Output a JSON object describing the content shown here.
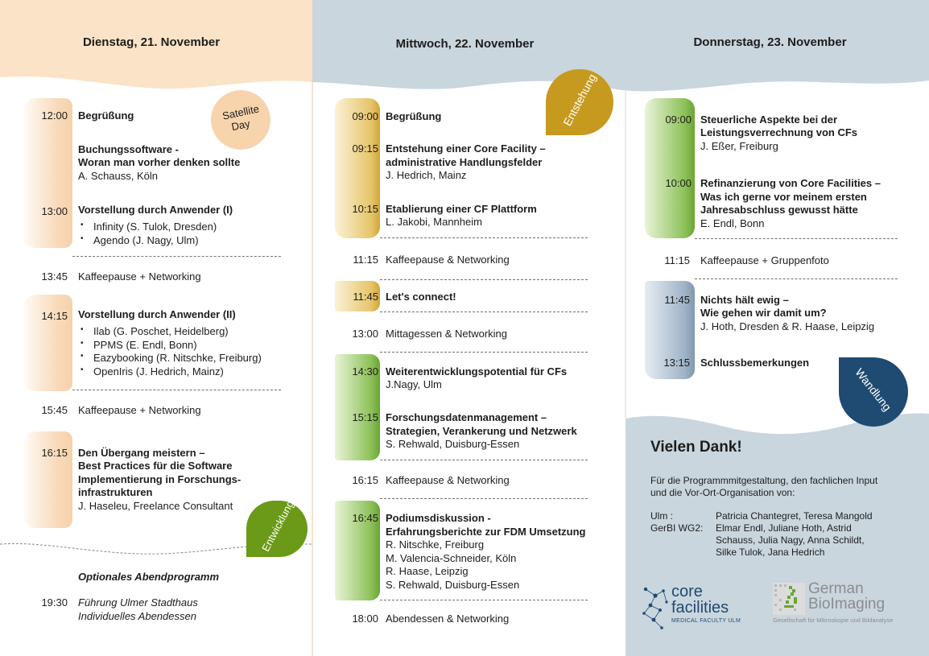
{
  "colors": {
    "peach": "#fbe3c8",
    "greyblue": "#cad6de",
    "gold": "#c69a1f",
    "green": "#6a9a17",
    "navy": "#1f4a72"
  },
  "day1": {
    "title": "Dienstag, 21. November",
    "badge": "Satellite Day",
    "badge_lines": [
      "Satellite",
      "Day"
    ],
    "tag": "Entwicklung",
    "e1_time": "12:00",
    "e1_title": "Begrüßung",
    "e2_title1": "Buchungssoftware -",
    "e2_title2": "Woran man vorher denken sollte",
    "e2_sub": "A. Schauss, Köln",
    "e3_time": "13:00",
    "e3_title": "Vorstellung durch Anwender (I)",
    "e3_items": [
      "Infinity (S. Tulok, Dresden)",
      "Agendo (J. Nagy, Ulm)"
    ],
    "e4_time": "13:45",
    "e4_text": "Kaffeepause + Networking",
    "e5_time": "14:15",
    "e5_title": "Vorstellung durch Anwender (II)",
    "e5_items": [
      "Ilab (G. Poschet, Heidelberg)",
      "PPMS (E. Endl, Bonn)",
      "Eazybooking (R. Nitschke, Freiburg)",
      "OpenIris (J. Hedrich, Mainz)"
    ],
    "e6_time": "15:45",
    "e6_text": "Kaffeepause + Networking",
    "e7_time": "16:15",
    "e7_lines": [
      "Den Übergang meistern –",
      "Best Practices für die Software",
      "Implementierung in Forschungs-",
      "infrastrukturen"
    ],
    "e7_sub": "J. Haseleu, Freelance Consultant",
    "evening_title": "Optionales Abendprogramm",
    "evening_time": "19:30",
    "evening_lines": [
      "Führung Ulmer Stadthaus",
      "Individuelles Abendessen"
    ]
  },
  "day2": {
    "title": "Mittwoch, 22. November",
    "tag": "Entstehung",
    "e1_time": "09:00",
    "e1_title": "Begrüßung",
    "e2_time": "09:15",
    "e2_title1": "Entstehung einer Core Facility –",
    "e2_title2": "administrative Handlungsfelder",
    "e2_sub": "J. Hedrich, Mainz",
    "e3_time": "10:15",
    "e3_title": "Etablierung einer CF Plattform",
    "e3_sub": "L. Jakobi, Mannheim",
    "e4_time": "11:15",
    "e4_text": "Kaffeepause & Networking",
    "e5_time": "11:45",
    "e5_title": "Let's connect!",
    "e6_time": "13:00",
    "e6_text": "Mittagessen & Networking",
    "e7_time": "14:30",
    "e7_title": "Weiterentwicklungspotential für CFs",
    "e7_sub": "J.Nagy, Ulm",
    "e8_time": "15:15",
    "e8_title1": "Forschungsdatenmanagement –",
    "e8_title2": "Strategien, Verankerung und Netzwerk",
    "e8_sub": "S. Rehwald, Duisburg-Essen",
    "e9_time": "16:15",
    "e9_text": "Kaffeepause & Networking",
    "e10_time": "16:45",
    "e10_title1": "Podiumsdiskussion -",
    "e10_title2": "Erfahrungsberichte zur FDM Umsetzung",
    "e10_subs": [
      "R. Nitschke, Freiburg",
      "M. Valencia-Schneider, Köln",
      "R. Haase, Leipzig",
      "S. Rehwald, Duisburg-Essen"
    ],
    "e11_time": "18:00",
    "e11_text": "Abendessen & Networking"
  },
  "day3": {
    "title": "Donnerstag, 23. November",
    "tag": "Wandlung",
    "e1_time": "09:00",
    "e1_title1": "Steuerliche Aspekte bei der",
    "e1_title2": "Leistungsverrechnung von CFs",
    "e1_sub": "J. Eßer, Freiburg",
    "e2_time": "10:00",
    "e2_title1": "Refinanzierung von Core Facilities –",
    "e2_title2": "Was ich gerne vor meinem ersten",
    "e2_title3": "Jahresabschluss gewusst hätte",
    "e2_sub": "E. Endl, Bonn",
    "e3_time": "11:15",
    "e3_text": "Kaffeepause + Gruppenfoto",
    "e4_time": "11:45",
    "e4_title1": "Nichts hält ewig –",
    "e4_title2": "Wie gehen wir damit um?",
    "e4_sub": "J. Hoth, Dresden & R. Haase, Leipzig",
    "e5_time": "13:15",
    "e5_title": "Schlussbemerkungen",
    "thanks_title": "Vielen Dank!",
    "thanks_text1": "Für die Programmmitgestaltung, den fachlichen Input",
    "thanks_text2": "und die Vor-Ort-Organisation von:",
    "ulm_label": "Ulm :",
    "ulm_names": "Patricia Chantegret, Teresa Mangold",
    "gerbi_label": "GerBI WG2:",
    "gerbi_lines": [
      "Elmar Endl, Juliane Hoth, Astrid",
      "Schauss, Julia Nagy, Anna Schildt,",
      "Silke Tulok, Jana Hedrich"
    ]
  },
  "logos": {
    "cf_line1": "core",
    "cf_line2": "facilities",
    "cf_line3": "MEDICAL FACULTY ULM",
    "gb_line1": "German",
    "gb_line2": "BioImaging",
    "gb_line3": "Gesellschaft für Mikroskopie und Bildanalyse"
  }
}
